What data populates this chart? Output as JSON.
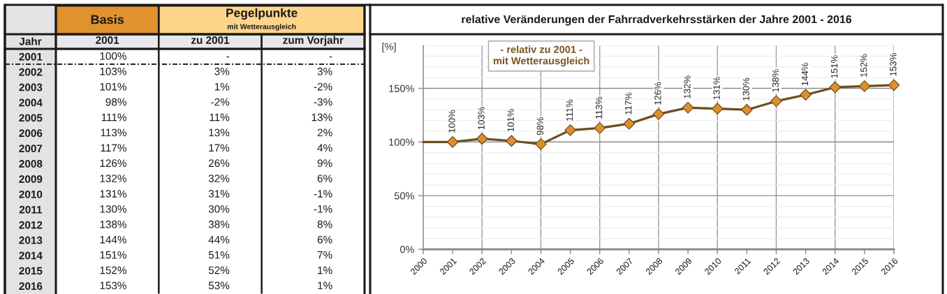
{
  "chart_data": [
    {
      "type": "heatmap",
      "ylabel": "Jahr",
      "annotations": [
        "Basis",
        "Pegelpunkte",
        "mit Wetterausgleich"
      ],
      "categories": [
        "2001",
        "zu 2001",
        "zum Vorjahr"
      ],
      "y_categories": [
        "2001",
        "2002",
        "2003",
        "2004",
        "2005",
        "2006",
        "2007",
        "2008",
        "2009",
        "2010",
        "2011",
        "2012",
        "2013",
        "2014",
        "2015",
        "2016"
      ],
      "cells": [
        [
          null,
          null,
          null
        ],
        [
          null,
          null,
          null
        ],
        [
          null,
          null,
          null
        ],
        [
          null,
          null,
          null
        ],
        [
          null,
          null,
          null
        ],
        [
          null,
          null,
          null
        ],
        [
          null,
          null,
          null
        ],
        [
          null,
          null,
          null
        ],
        [
          null,
          null,
          null
        ],
        [
          null,
          null,
          null
        ],
        [
          null,
          null,
          null
        ],
        [
          null,
          null,
          null
        ],
        [
          null,
          null,
          null
        ],
        [
          null,
          null,
          null
        ],
        [
          null,
          null,
          null
        ],
        [
          null,
          null,
          null
        ]
      ],
      "cell_labels": [
        [
          "100%",
          "-",
          "-"
        ],
        [
          "103%",
          "3%",
          "3%"
        ],
        [
          "101%",
          "1%",
          "-2%"
        ],
        [
          "98%",
          "-2%",
          "-3%"
        ],
        [
          "111%",
          "11%",
          "13%"
        ],
        [
          "113%",
          "13%",
          "2%"
        ],
        [
          "117%",
          "17%",
          "4%"
        ],
        [
          "126%",
          "26%",
          "9%"
        ],
        [
          "132%",
          "32%",
          "6%"
        ],
        [
          "131%",
          "31%",
          "-1%"
        ],
        [
          "130%",
          "30%",
          "-1%"
        ],
        [
          "138%",
          "38%",
          "8%"
        ],
        [
          "144%",
          "44%",
          "6%"
        ],
        [
          "151%",
          "51%",
          "7%"
        ],
        [
          "152%",
          "52%",
          "1%"
        ],
        [
          "153%",
          "53%",
          "1%"
        ]
      ],
      "grid": "x"
    },
    {
      "type": "line",
      "title": "relative Veränderungen der Fahrradverkehrsstärken der Jahre 2001 - 2016",
      "ylabel": "[%]",
      "annotations": [
        "- relativ zu 2001 -\nmit Wetterausgleich"
      ],
      "xlim": [
        2000,
        2016
      ],
      "xticks": [
        2000,
        2001,
        2002,
        2003,
        2004,
        2005,
        2006,
        2007,
        2008,
        2009,
        2010,
        2011,
        2012,
        2013,
        2014,
        2015,
        2016
      ],
      "ylim": [
        0,
        190
      ],
      "yticks": [
        {
          "value": 0,
          "label": "0%"
        },
        {
          "value": 10,
          "label": null
        },
        {
          "value": 20,
          "label": null
        },
        {
          "value": 30,
          "label": null
        },
        {
          "value": 40,
          "label": null
        },
        {
          "value": 50,
          "label": "50%"
        },
        {
          "value": 60,
          "label": null
        },
        {
          "value": 70,
          "label": null
        },
        {
          "value": 80,
          "label": null
        },
        {
          "value": 90,
          "label": null
        },
        {
          "value": 100,
          "label": "100%"
        },
        {
          "value": 110,
          "label": null
        },
        {
          "value": 120,
          "label": null
        },
        {
          "value": 130,
          "label": null
        },
        {
          "value": 140,
          "label": null
        },
        {
          "value": 150,
          "label": "150%"
        },
        {
          "value": 160,
          "label": null
        },
        {
          "value": 170,
          "label": null
        },
        {
          "value": 180,
          "label": null
        },
        {
          "value": 190,
          "label": null
        }
      ],
      "grid": true,
      "series": [
        {
          "x": [
            2000,
            2001
          ],
          "values": [
            100,
            100
          ],
          "color": "#6b4c1f"
        },
        {
          "x": [
            2001,
            2002,
            2003,
            2004,
            2005,
            2006,
            2007,
            2008,
            2009,
            2010,
            2011,
            2012,
            2013,
            2014,
            2015,
            2016
          ],
          "values": [
            100,
            103,
            101,
            98,
            111,
            113,
            117,
            126,
            132,
            131,
            130,
            138,
            144,
            151,
            152,
            153
          ],
          "color": "#6b4c1f",
          "marker": "diamond",
          "colors": [
            "#e08e2b",
            "#e08e2b",
            "#e08e2b",
            "#e08e2b",
            "#e08e2b",
            "#e08e2b",
            "#e08e2b",
            "#e08e2b",
            "#e08e2b",
            "#e08e2b",
            "#e08e2b",
            "#e08e2b",
            "#e08e2b",
            "#e08e2b",
            "#e08e2b",
            "#e08e2b"
          ],
          "value_labels": [
            "100%",
            "103%",
            "101%",
            "98%",
            "111%",
            "113%",
            "117%",
            "126%",
            "132%",
            "131%",
            "130%",
            "138%",
            "144%",
            "151%",
            "152%",
            "153%"
          ]
        }
      ]
    }
  ]
}
